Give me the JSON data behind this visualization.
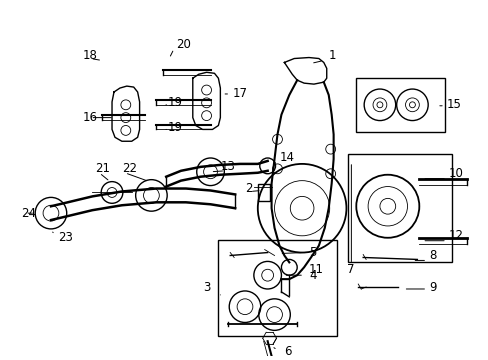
{
  "bg_color": "#ffffff",
  "fig_width": 4.89,
  "fig_height": 3.6,
  "dpi": 100,
  "line_color": "#000000",
  "text_color": "#000000",
  "font_size": 8.5,
  "font_size_small": 7.0
}
